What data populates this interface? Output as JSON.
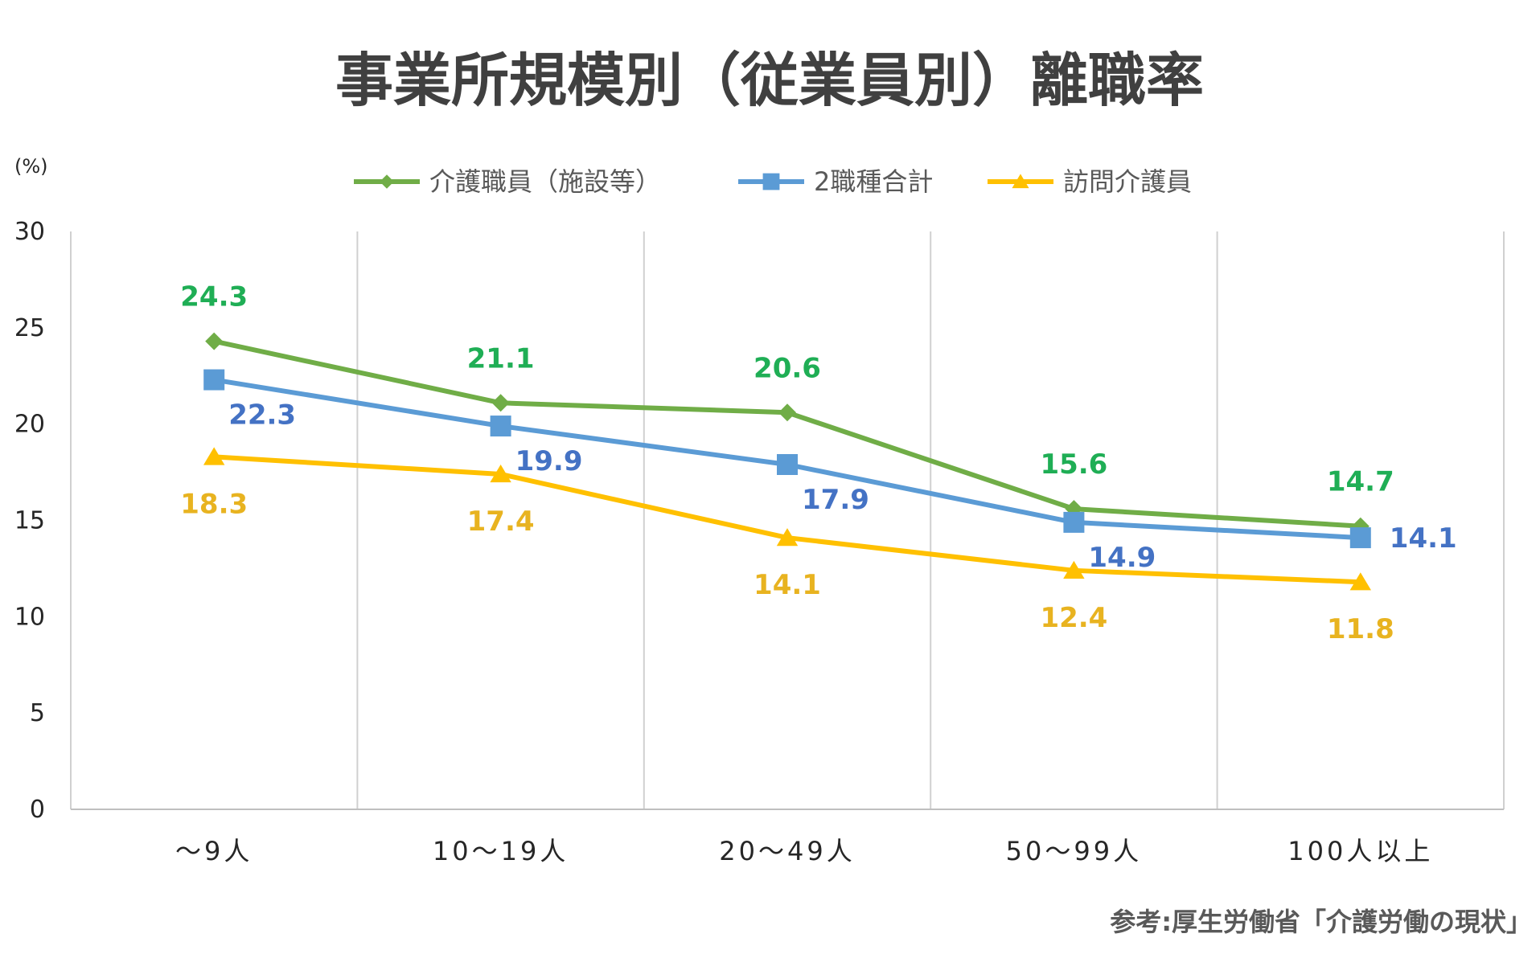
{
  "chart_data": {
    "type": "line",
    "title": "事業所規模別（従業員別）離職率",
    "ylabel": "(%)",
    "ylim": [
      0,
      30
    ],
    "yticks": [
      0,
      5,
      10,
      15,
      20,
      25,
      30
    ],
    "categories": [
      "～9人",
      "10～19人",
      "20～49人",
      "50～99人",
      "100人以上"
    ],
    "grid": "vertical",
    "legend_position": "top",
    "series": [
      {
        "name": "介護職員（施設等）",
        "color": "#70AD47",
        "label_color": "#1FAE55",
        "marker": "diamond",
        "values": [
          24.3,
          21.1,
          20.6,
          15.6,
          14.7
        ],
        "label_pos": [
          "above",
          "above",
          "above",
          "above",
          "above"
        ]
      },
      {
        "name": "2職種合計",
        "color": "#5B9BD5",
        "label_color": "#4472C4",
        "marker": "square",
        "values": [
          22.3,
          19.9,
          17.9,
          14.9,
          14.1
        ],
        "label_pos": [
          "below-right",
          "below-right",
          "below-right",
          "below-right",
          "right"
        ]
      },
      {
        "name": "訪問介護員",
        "color": "#FFC000",
        "label_color": "#E8B320",
        "marker": "triangle",
        "values": [
          18.3,
          17.4,
          14.1,
          12.4,
          11.8
        ],
        "label_pos": [
          "below",
          "below",
          "below",
          "below",
          "below"
        ]
      }
    ],
    "source": "参考:厚生労働省「介護労働の現状」"
  }
}
